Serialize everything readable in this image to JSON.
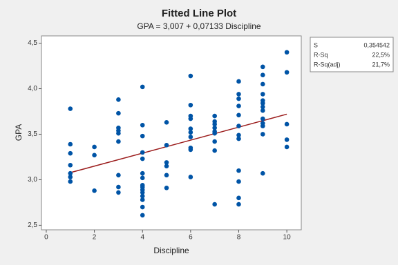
{
  "chart_data": {
    "type": "scatter",
    "title": "Fitted Line Plot",
    "subtitle": "GPA = 3,007 + 0,07133 Discipline",
    "x_label": "Discipline",
    "y_label": "GPA",
    "xlim": [
      -0.2,
      10.6
    ],
    "ylim": [
      2.45,
      4.58
    ],
    "xticks": [
      0,
      2,
      4,
      6,
      8,
      10
    ],
    "yticks": [
      {
        "value": 2.5,
        "label": "2,5"
      },
      {
        "value": 3.0,
        "label": "3,0"
      },
      {
        "value": 3.5,
        "label": "3,5"
      },
      {
        "value": 4.0,
        "label": "4,0"
      },
      {
        "value": 4.5,
        "label": "4,5"
      }
    ],
    "series": [
      {
        "color": "#0054a6",
        "x": [
          1,
          1,
          1,
          1,
          1,
          1,
          1,
          2,
          2,
          2,
          3,
          3,
          3,
          3,
          3,
          3,
          3,
          3,
          3,
          4,
          4,
          4,
          4,
          4,
          4,
          4,
          4,
          4,
          4,
          4,
          4,
          4,
          4,
          4,
          5,
          5,
          5,
          5,
          5,
          5,
          6,
          6,
          6,
          6,
          6,
          6,
          6,
          6,
          6,
          6,
          7,
          7,
          7,
          7,
          7,
          7,
          7,
          7,
          7,
          8,
          8,
          8,
          8,
          8,
          8,
          8,
          8,
          8,
          8,
          8,
          8,
          9,
          9,
          9,
          9,
          9,
          9,
          9,
          9,
          9,
          9,
          9,
          9,
          9,
          10,
          10,
          10,
          10,
          10
        ],
        "values": [
          3.78,
          3.39,
          3.29,
          3.16,
          3.07,
          3.03,
          2.98,
          3.36,
          3.27,
          2.88,
          3.88,
          3.73,
          3.57,
          3.54,
          3.51,
          3.42,
          3.05,
          2.92,
          2.86,
          4.02,
          3.6,
          3.48,
          3.3,
          3.23,
          3.07,
          3.02,
          2.94,
          2.92,
          2.89,
          2.86,
          2.82,
          2.78,
          2.7,
          2.61,
          3.63,
          3.38,
          3.19,
          3.15,
          3.05,
          2.91,
          4.14,
          3.82,
          3.7,
          3.67,
          3.56,
          3.52,
          3.47,
          3.35,
          3.33,
          3.03,
          3.7,
          3.64,
          3.61,
          3.57,
          3.53,
          3.51,
          3.42,
          3.32,
          2.73,
          4.08,
          3.94,
          3.89,
          3.81,
          3.71,
          3.59,
          3.49,
          3.45,
          3.1,
          2.98,
          2.8,
          2.73,
          4.24,
          4.15,
          4.05,
          3.94,
          3.87,
          3.84,
          3.8,
          3.76,
          3.67,
          3.62,
          3.59,
          3.5,
          3.07,
          4.4,
          4.18,
          3.61,
          3.44,
          3.36
        ]
      }
    ],
    "fit_line": {
      "color": "#9b1c1c",
      "x": [
        1,
        10
      ],
      "values": [
        3.078,
        3.72
      ]
    },
    "stats_box": {
      "rows": [
        [
          "S",
          "0,354542"
        ],
        [
          "R-Sq",
          "22,5%"
        ],
        [
          "R-Sq(adj)",
          "21,7%"
        ]
      ]
    }
  }
}
